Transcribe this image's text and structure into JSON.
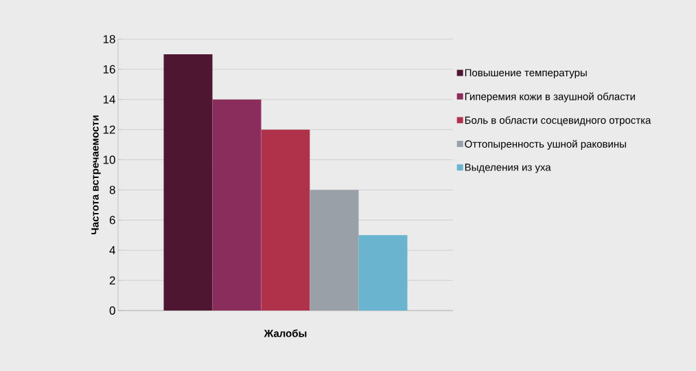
{
  "chart_data": {
    "type": "bar",
    "xlabel": "Жалобы",
    "ylabel": "Частота встречаемости",
    "categories": [
      null
    ],
    "series": [
      {
        "name": "Повышение температуры",
        "color": "#4f1631",
        "values": [
          17
        ]
      },
      {
        "name": "Гиперемия кожи в заушной области",
        "color": "#8b2d5c",
        "values": [
          14
        ]
      },
      {
        "name": "Боль в области сосцевидного отростка",
        "color": "#b0324a",
        "values": [
          12
        ]
      },
      {
        "name": "Оттопыренность ушной раковины",
        "color": "#9aa0a8",
        "values": [
          8
        ]
      },
      {
        "name": "Выделения из уха",
        "color": "#6ab4d0",
        "values": [
          5
        ]
      }
    ],
    "ylim": [
      0,
      18
    ],
    "yticks": [
      0,
      2,
      4,
      6,
      8,
      10,
      12,
      14,
      16,
      18
    ],
    "grid": "y",
    "legend": "right"
  }
}
